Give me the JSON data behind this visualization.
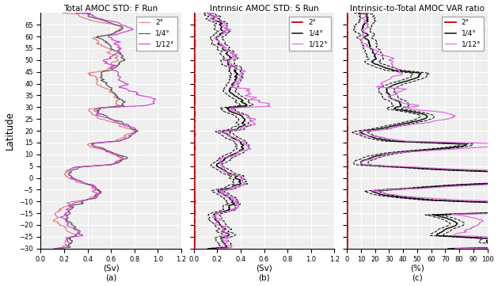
{
  "title1": "Total AMOC STD: F Run",
  "title2": "Intrinsic AMOC STD: S Run",
  "title3": "Intrinsic-to-Total AMOC VAR ratio",
  "xlabel1": "(Sv)",
  "xlabel2": "(Sv)",
  "xlabel3": "(%)",
  "label_a": "(a)",
  "label_b": "(b)",
  "label_c": "(c)",
  "ylabel": "Latitude",
  "ylim": [
    -30,
    70
  ],
  "yticks": [
    -30,
    -25,
    -20,
    -15,
    -10,
    -5,
    0,
    5,
    10,
    15,
    20,
    25,
    30,
    35,
    40,
    45,
    50,
    55,
    60,
    65
  ],
  "xlim1": [
    0.0,
    1.2
  ],
  "xticks1": [
    0.0,
    0.2,
    0.4,
    0.6,
    0.8,
    1.0,
    1.2
  ],
  "xlim2": [
    0.0,
    1.2
  ],
  "xticks2": [
    0.0,
    0.2,
    0.4,
    0.6,
    0.8,
    1.0,
    1.2
  ],
  "xlim3": [
    0,
    100
  ],
  "xticks3": [
    0,
    10,
    20,
    30,
    40,
    50,
    60,
    70,
    80,
    90,
    100
  ],
  "color_2deg_f": "#e08080",
  "color_quarter_f": "#555555",
  "color_twelfth_f": "#cc44cc",
  "color_2deg_s": "#cc0000",
  "color_quarter_s": "#111111",
  "color_twelfth_s": "#dd66dd",
  "legend_labels": [
    "2°",
    "1/4°",
    "1/12°"
  ],
  "bg_color": "#efefef",
  "grid_color": "#ffffff",
  "figsize": [
    6.29,
    3.61
  ],
  "dpi": 100
}
